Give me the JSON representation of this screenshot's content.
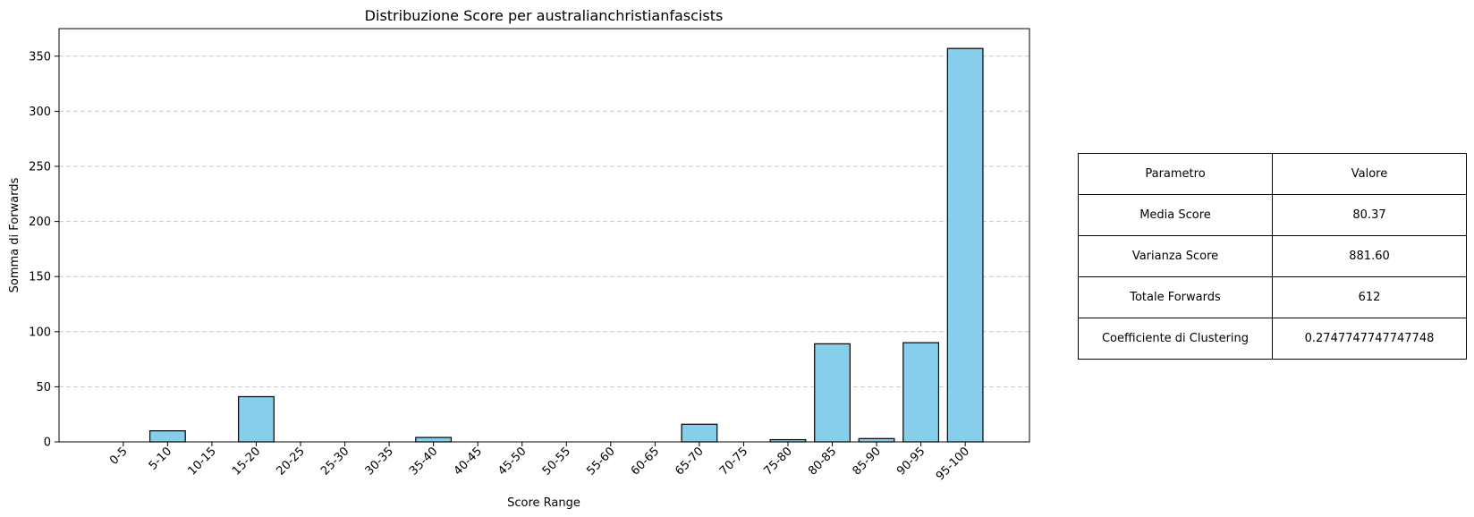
{
  "chart_data": {
    "type": "bar",
    "title": "Distribuzione Score per australianchristianfascists",
    "xlabel": "Score Range",
    "ylabel": "Somma di Forwards",
    "categories": [
      "0-5",
      "5-10",
      "10-15",
      "15-20",
      "20-25",
      "25-30",
      "30-35",
      "35-40",
      "40-45",
      "45-50",
      "50-55",
      "55-60",
      "60-65",
      "65-70",
      "70-75",
      "75-80",
      "80-85",
      "85-90",
      "90-95",
      "95-100"
    ],
    "values": [
      0,
      10,
      0,
      41,
      0,
      0,
      0,
      4,
      0,
      0,
      0,
      0,
      0,
      16,
      0,
      2,
      89,
      3,
      90,
      357
    ],
    "ylim": [
      0,
      375
    ],
    "yticks": [
      0,
      50,
      100,
      150,
      200,
      250,
      300,
      350
    ],
    "grid": "y-dashed",
    "bar_color": "#87ceeb",
    "edge_color": "#000000"
  },
  "table": {
    "header": [
      "Parametro",
      "Valore"
    ],
    "rows": [
      [
        "Media Score",
        "80.37"
      ],
      [
        "Varianza Score",
        "881.60"
      ],
      [
        "Totale Forwards",
        "612"
      ],
      [
        "Coefficiente di Clustering",
        "0.2747747747747748"
      ]
    ]
  }
}
